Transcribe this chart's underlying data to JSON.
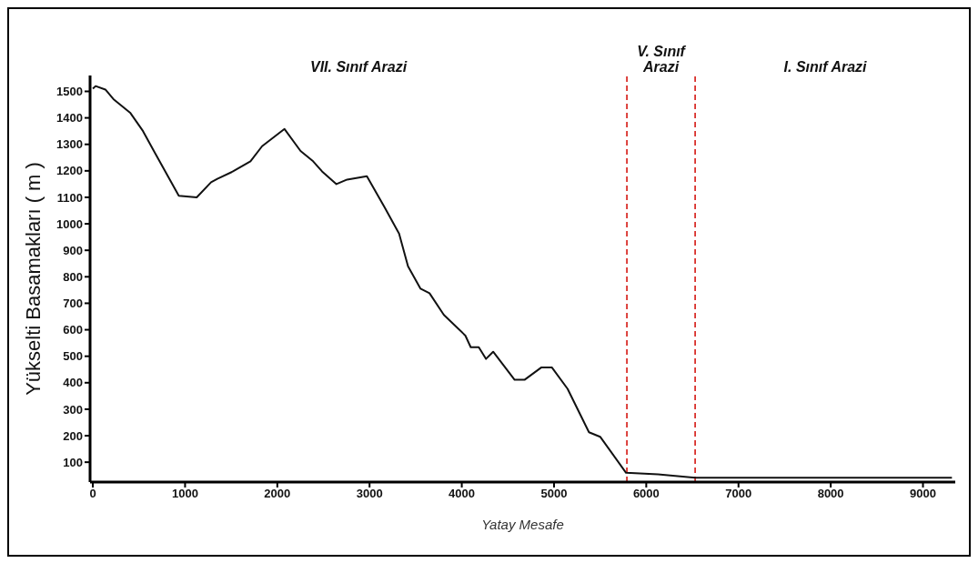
{
  "chart_data": {
    "type": "line",
    "xlabel": "Yatay Mesafe",
    "ylabel": "Yükselti Basamakları ( m )",
    "color": "#111111",
    "x": [
      0,
      30,
      136,
      223,
      408,
      544,
      670,
      932,
      1126,
      1282,
      1350,
      1515,
      1709,
      1835,
      2078,
      2252,
      2388,
      2485,
      2641,
      2757,
      2971,
      3165,
      3320,
      3417,
      3553,
      3650,
      3806,
      4039,
      4097,
      4184,
      4262,
      4340,
      4573,
      4680,
      4864,
      4976,
      5147,
      5379,
      5500,
      5781,
      6127,
      6534,
      9314
    ],
    "values": [
      1510,
      1520,
      1507,
      1471,
      1418,
      1350,
      1270,
      1106,
      1100,
      1157,
      1170,
      1197,
      1236,
      1293,
      1358,
      1275,
      1236,
      1198,
      1150,
      1167,
      1180,
      1061,
      963,
      840,
      755,
      738,
      656,
      578,
      534,
      534,
      490,
      517,
      411,
      411,
      458,
      458,
      377,
      213,
      196,
      60,
      54,
      41,
      41
    ],
    "xlim": [
      -30,
      9350
    ],
    "xticks": [
      0,
      1000,
      2000,
      3000,
      4000,
      5000,
      6000,
      7000,
      8000,
      9000
    ],
    "ylim": [
      25,
      1560
    ],
    "yticks": [
      100,
      200,
      300,
      400,
      500,
      600,
      700,
      800,
      900,
      1000,
      1100,
      1200,
      1300,
      1400,
      1500
    ],
    "ref_lines": [
      {
        "axis": "x",
        "value": 5790,
        "color": "#d9302c",
        "line_style": "dashed"
      },
      {
        "axis": "x",
        "value": 6530,
        "color": "#d9302c",
        "line_style": "dashed"
      }
    ],
    "annotations": [
      "VII. Sınıf Arazi",
      "V. Sınıf Arazi",
      "I. Sınıf Arazi"
    ]
  }
}
